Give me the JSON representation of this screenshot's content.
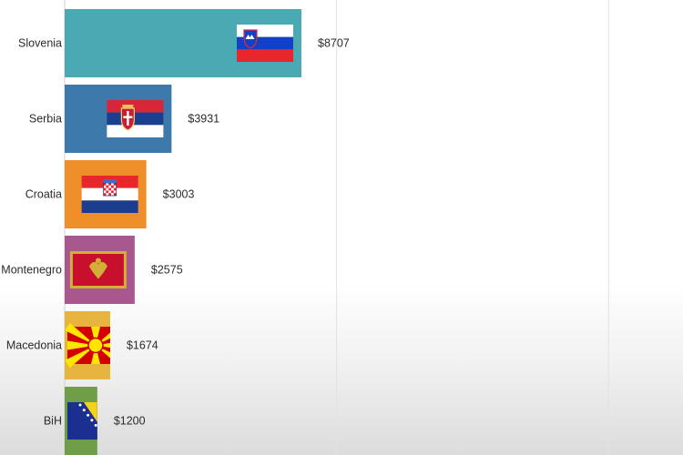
{
  "chart_data": {
    "type": "bar",
    "orientation": "horizontal",
    "categories": [
      "Slovenia",
      "Serbia",
      "Croatia",
      "Montenegro",
      "Macedonia",
      "BiH"
    ],
    "values": [
      8707,
      3931,
      3003,
      2575,
      1674,
      1200
    ],
    "value_labels": [
      "$8707",
      "$3931",
      "$3003",
      "$2575",
      "$1674",
      "$1200"
    ],
    "bar_colors": [
      "#4aa9b2",
      "#3d79ab",
      "#ef8f2a",
      "#a8578f",
      "#e7b53d",
      "#6f9d48"
    ],
    "flags": [
      "slovenia-flag",
      "serbia-flag",
      "croatia-flag",
      "montenegro-flag",
      "macedonia-flag",
      "bih-flag"
    ],
    "grid": true,
    "grid_values": [
      10000,
      20000
    ],
    "title": "",
    "xlabel": "",
    "ylabel": ""
  }
}
